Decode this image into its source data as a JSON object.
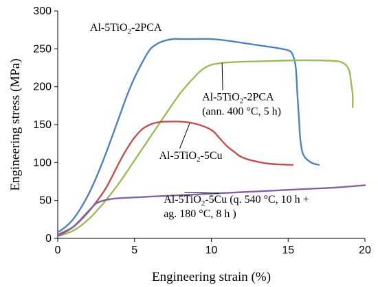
{
  "chart_data": {
    "type": "line",
    "xlabel": "Engineering strain (%)",
    "ylabel": "Engineering stress (MPa)",
    "xlim": [
      0,
      20
    ],
    "ylim": [
      0,
      300
    ],
    "xticks": [
      0,
      5,
      10,
      15,
      20
    ],
    "yticks": [
      0,
      50,
      100,
      150,
      200,
      250,
      300
    ],
    "grid": false,
    "legend": "none",
    "series": [
      {
        "id": "s1",
        "color": "#4f81bd",
        "x": [
          0,
          0.5,
          1,
          1.5,
          2,
          2.5,
          3,
          3.5,
          4,
          4.5,
          5,
          5.5,
          6,
          6.5,
          7,
          7.5,
          8,
          9,
          10,
          11,
          12,
          13,
          14,
          15,
          15.3,
          15.5,
          15.6,
          15.7,
          15.8,
          16,
          16.5,
          17
        ],
        "y": [
          8,
          15,
          25,
          40,
          58,
          80,
          105,
          132,
          160,
          188,
          212,
          232,
          249,
          257,
          261,
          263,
          263,
          263,
          263,
          261,
          258,
          255,
          252,
          248,
          242,
          225,
          190,
          160,
          130,
          110,
          100,
          97
        ]
      },
      {
        "id": "s2",
        "color": "#9bbb59",
        "x": [
          0,
          1,
          2,
          3,
          4,
          5,
          6,
          7,
          8,
          9,
          9.5,
          10,
          10.5,
          11,
          12,
          14,
          16,
          18,
          18.5,
          18.8,
          19,
          19.1,
          19.2,
          19.2
        ],
        "y": [
          3,
          10,
          25,
          47,
          73,
          103,
          133,
          163,
          192,
          215,
          224,
          229,
          231,
          232,
          233,
          234,
          235,
          234,
          232,
          228,
          220,
          205,
          190,
          173
        ]
      },
      {
        "id": "s3",
        "color": "#c0504d",
        "x": [
          0,
          1,
          2,
          3,
          3.5,
          4,
          4.5,
          5,
          5.5,
          6,
          6.5,
          7,
          8,
          9,
          10,
          10.5,
          11,
          11.5,
          12,
          13,
          14,
          15.3
        ],
        "y": [
          5,
          15,
          35,
          62,
          80,
          100,
          118,
          133,
          144,
          150,
          153,
          154,
          154,
          151,
          143,
          133,
          122,
          114,
          107,
          101,
          98,
          97
        ]
      },
      {
        "id": "s4",
        "color": "#8064a2",
        "x": [
          0,
          1,
          2,
          2.5,
          3,
          3.5,
          4,
          5,
          6,
          8,
          10,
          12,
          14,
          16,
          18,
          20
        ],
        "y": [
          3,
          15,
          36,
          46,
          50,
          52,
          53,
          54,
          55,
          57,
          59,
          61,
          63,
          65,
          67,
          70
        ]
      }
    ],
    "annotations": [
      {
        "id": "a1",
        "lines": [
          [
            {
              "t": "Al-5TiO"
            },
            {
              "t": "2",
              "sub": true
            },
            {
              "t": "-2PCA"
            }
          ]
        ],
        "x_data": 2.1,
        "y_data": 274,
        "pointer": false
      },
      {
        "id": "a2",
        "lines": [
          [
            {
              "t": "Al-5TiO"
            },
            {
              "t": "2",
              "sub": true
            },
            {
              "t": "-2PCA"
            }
          ],
          [
            {
              "t": "(ann. 400 °C, 5 h)"
            }
          ]
        ],
        "x_data": 9.4,
        "y_data": 182,
        "pointer": {
          "series": "s2",
          "at_x": 10.7
        }
      },
      {
        "id": "a3",
        "lines": [
          [
            {
              "t": "Al-5TiO"
            },
            {
              "t": "2",
              "sub": true
            },
            {
              "t": "-5Cu"
            }
          ]
        ],
        "x_data": 6.6,
        "y_data": 105,
        "pointer": {
          "series": "s3",
          "at_x": 8.6
        }
      },
      {
        "id": "a4",
        "lines": [
          [
            {
              "t": "Al-5TiO"
            },
            {
              "t": "2",
              "sub": true
            },
            {
              "t": "-5Cu  (q. 540 °C, 10 h +"
            }
          ],
          [
            {
              "t": "ag. 180 °C, 8 h )"
            }
          ]
        ],
        "x_data": 6.9,
        "y_data": 47,
        "pointer": {
          "series": "s4",
          "at_x": 10.5
        }
      }
    ]
  }
}
